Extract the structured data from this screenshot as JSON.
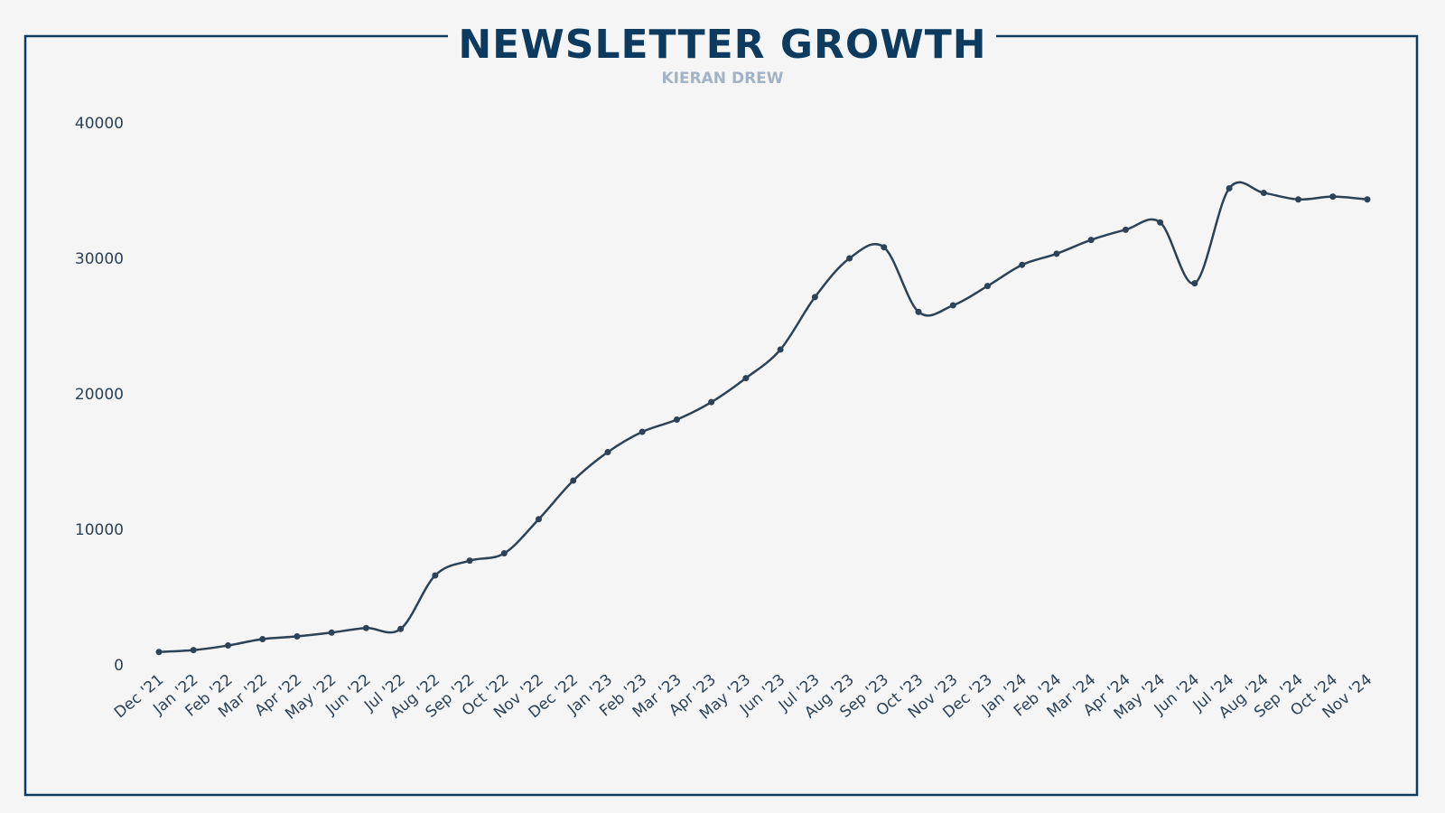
{
  "chart_data": {
    "type": "line",
    "title": "NEWSLETTER GROWTH",
    "subtitle": "KIERAN DREW",
    "xlabel": "",
    "ylabel": "",
    "ylim": [
      0,
      40000
    ],
    "yticks": [
      0,
      10000,
      20000,
      30000,
      40000
    ],
    "grid": false,
    "colors": {
      "line": "#2c4257",
      "frame": "#0d3a5f",
      "subtitle": "#a3b3c6",
      "background": "#f5f5f5"
    },
    "categories": [
      "Dec '21",
      "Jan '22",
      "Feb '22",
      "Mar '22",
      "Apr '22",
      "May '22",
      "Jun '22",
      "Jul '22",
      "Aug '22",
      "Sep '22",
      "Oct '22",
      "Nov '22",
      "Dec '22",
      "Jan '23",
      "Feb '23",
      "Mar '23",
      "Apr '23",
      "May '23",
      "Jun '23",
      "Jul '23",
      "Aug '23",
      "Sep '23",
      "Oct '23",
      "Nov '23",
      "Dec '23",
      "Jan '24",
      "Feb '24",
      "Mar '24",
      "Apr '24",
      "May '24",
      "Jun '24",
      "Jul '24",
      "Aug '24",
      "Sep '24",
      "Oct '24",
      "Nov '24"
    ],
    "values": [
      950,
      1090,
      1430,
      1900,
      2100,
      2380,
      2720,
      2650,
      6600,
      7690,
      8230,
      10750,
      13600,
      15700,
      17200,
      18100,
      19390,
      21160,
      23270,
      27140,
      30000,
      30820,
      26050,
      26530,
      27960,
      29520,
      30340,
      31360,
      32110,
      32650,
      28160,
      35170,
      34830,
      34350,
      34560,
      34350
    ]
  }
}
